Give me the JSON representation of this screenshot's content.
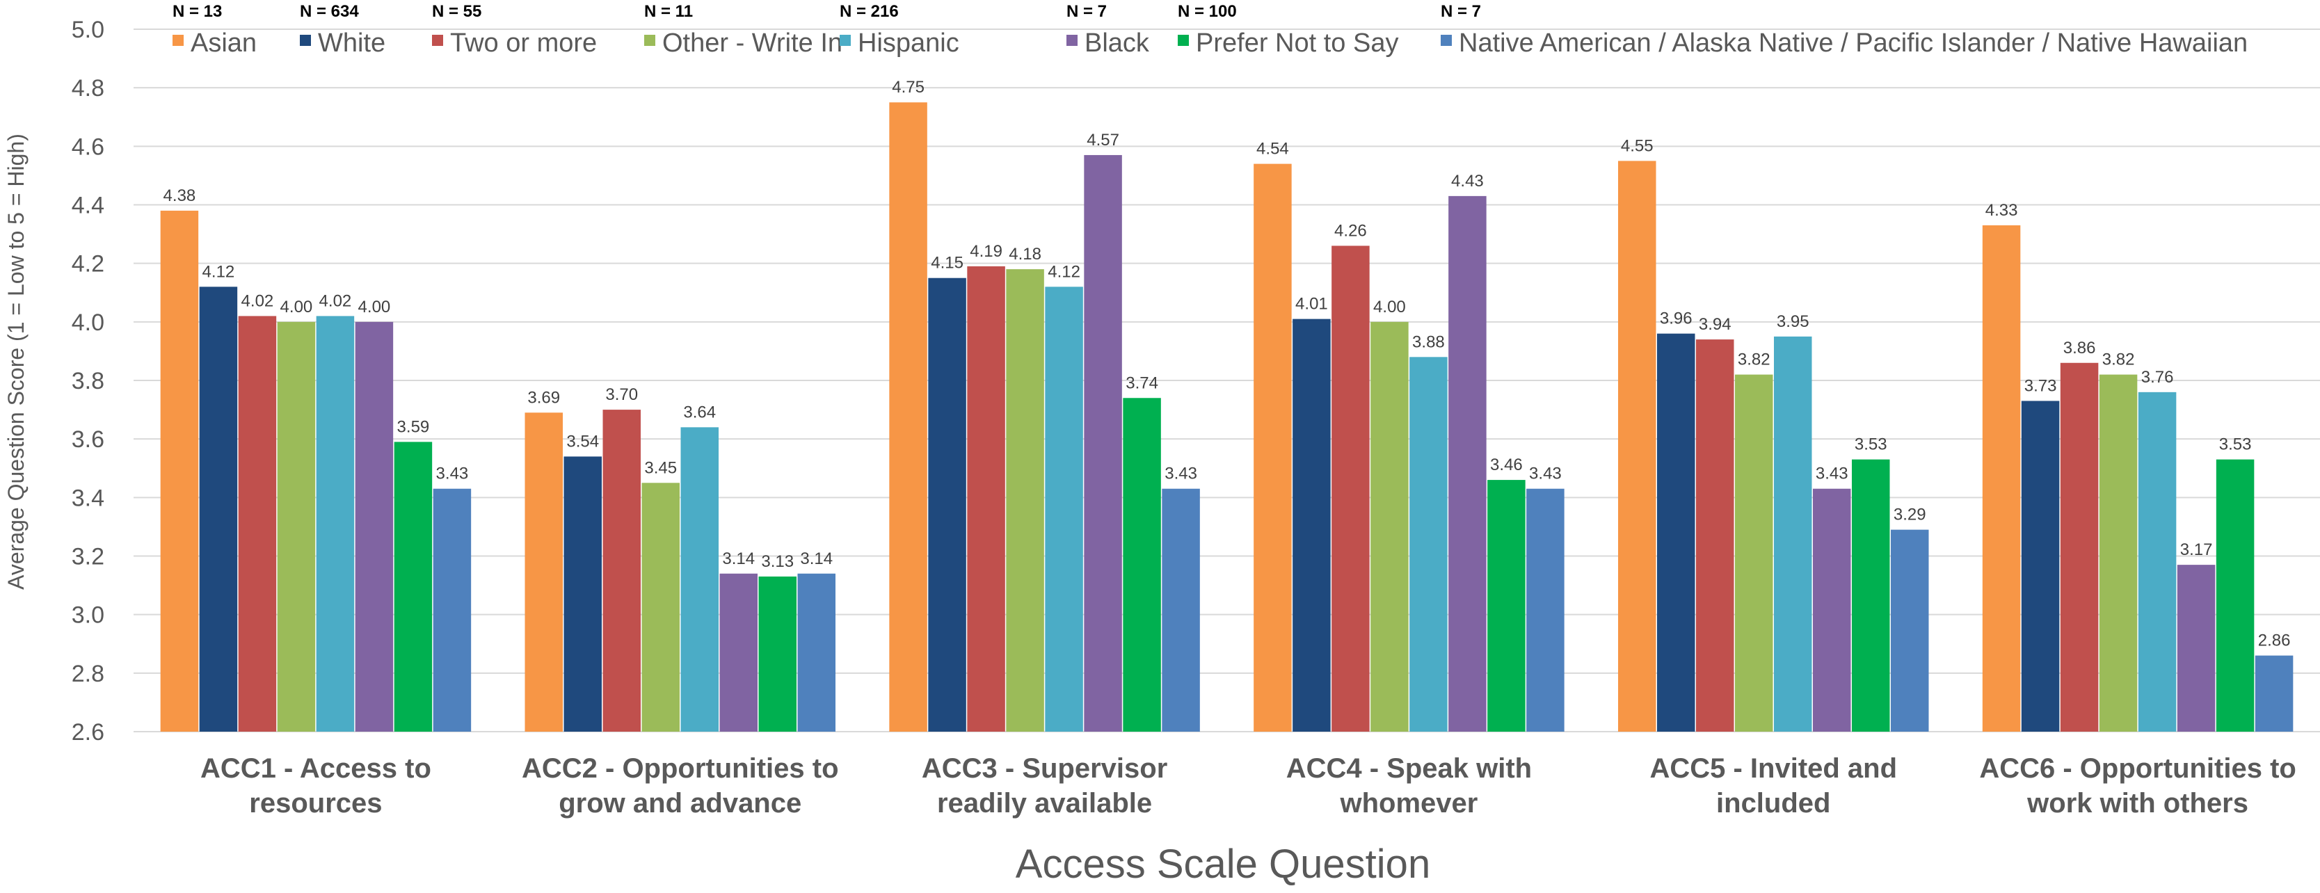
{
  "chart_data": {
    "type": "bar",
    "title": "",
    "xlabel": "Access Scale Question",
    "ylabel": "Average Question Score (1 = Low to 5 = High)",
    "ylim": [
      2.6,
      5.0
    ],
    "y_ticks": [
      "2.6",
      "2.8",
      "3.0",
      "3.2",
      "3.4",
      "3.6",
      "3.8",
      "4.0",
      "4.2",
      "4.4",
      "4.6",
      "4.8",
      "5.0"
    ],
    "grid": true,
    "legend_position": "top",
    "categories": [
      [
        "ACC1 - Access to",
        "resources"
      ],
      [
        "ACC2 - Opportunities to",
        "grow and advance"
      ],
      [
        "ACC3 - Supervisor",
        "readily available"
      ],
      [
        "ACC4 - Speak with",
        "whomever"
      ],
      [
        "ACC5 - Invited and",
        "included"
      ],
      [
        "ACC6 - Opportunities to",
        "work with others"
      ]
    ],
    "series": [
      {
        "name": "Asian",
        "n_label": "N = 13",
        "color": "#F79646",
        "values": [
          4.38,
          3.69,
          4.75,
          4.54,
          4.55,
          4.33
        ]
      },
      {
        "name": "White",
        "n_label": "N = 634",
        "color": "#1F497D",
        "values": [
          4.12,
          3.54,
          4.15,
          4.01,
          3.96,
          3.73
        ]
      },
      {
        "name": "Two or more",
        "n_label": "N = 55",
        "color": "#C0504D",
        "values": [
          4.02,
          3.7,
          4.19,
          4.26,
          3.94,
          3.86
        ]
      },
      {
        "name": "Other - Write In",
        "n_label": "N = 11",
        "color": "#9BBB59",
        "values": [
          4.0,
          3.45,
          4.18,
          4.0,
          3.82,
          3.82
        ]
      },
      {
        "name": "Hispanic",
        "n_label": "N = 216",
        "color": "#4BACC6",
        "values": [
          4.02,
          3.64,
          4.12,
          3.88,
          3.95,
          3.76
        ]
      },
      {
        "name": "Black",
        "n_label": "N = 7",
        "color": "#8064A2",
        "values": [
          4.0,
          3.14,
          4.57,
          4.43,
          3.43,
          3.17
        ]
      },
      {
        "name": "Prefer Not to Say",
        "n_label": "N = 100",
        "color": "#00B050",
        "values": [
          3.59,
          3.13,
          3.74,
          3.46,
          3.53,
          3.53
        ]
      },
      {
        "name": "Native American / Alaska Native / Pacific Islander / Native Hawaiian",
        "n_label": "N = 7",
        "color": "#4F81BD",
        "values": [
          3.43,
          3.14,
          3.43,
          3.43,
          3.29,
          2.86
        ]
      }
    ]
  }
}
